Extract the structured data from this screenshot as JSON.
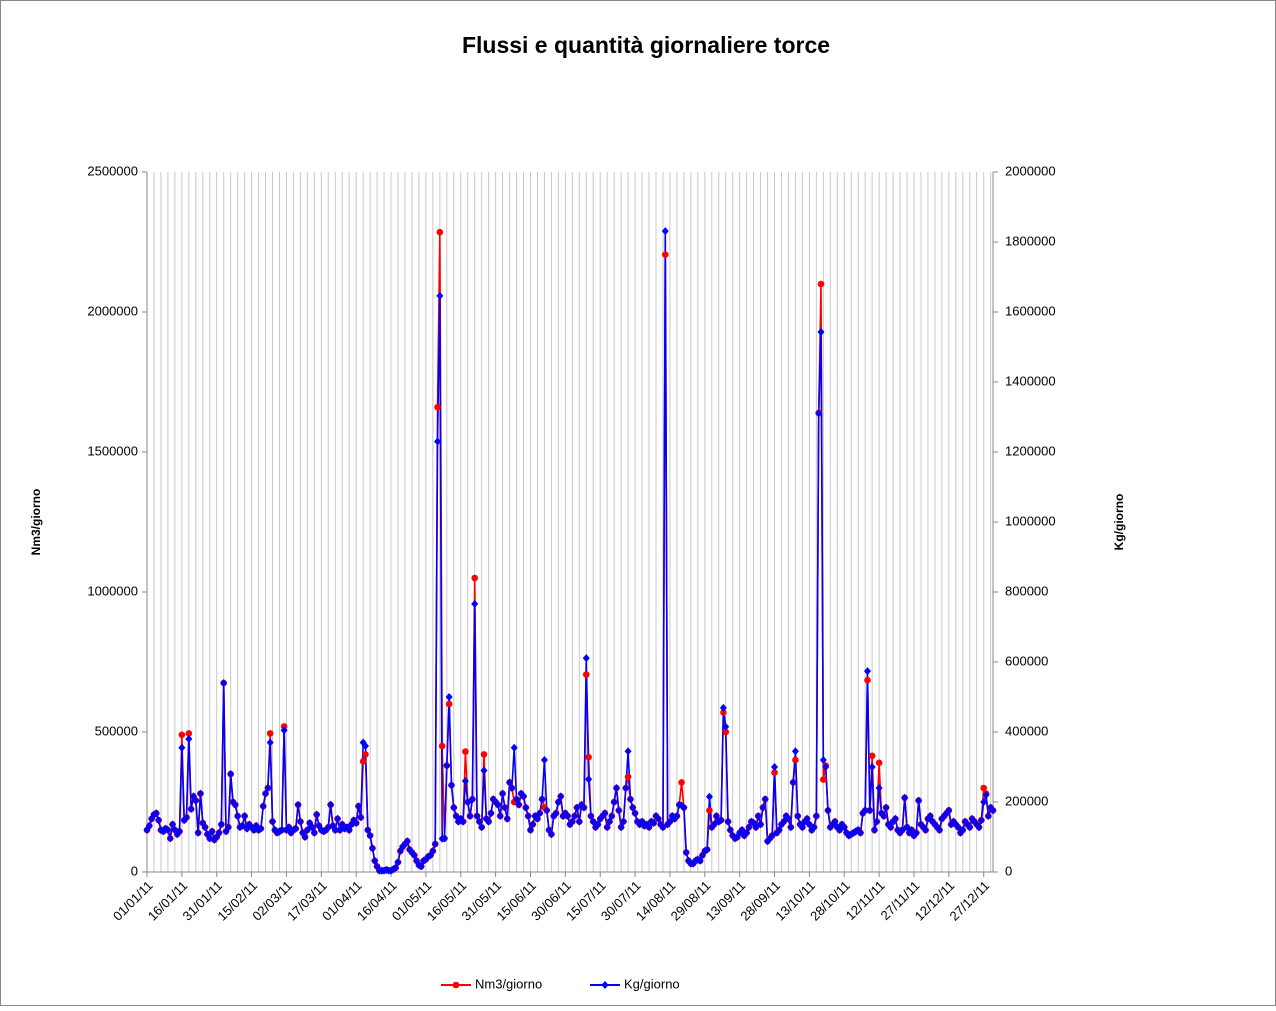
{
  "chart_data": {
    "type": "line",
    "title": "Flussi e quantità giornaliere torce",
    "y_label": "Nm3/giorno",
    "y2_label": "Kg/giorno",
    "categories": [
      "01/01/11",
      null,
      null,
      null,
      null,
      null,
      null,
      null,
      null,
      null,
      null,
      null,
      null,
      null,
      null,
      "16/01/11",
      null,
      null,
      null,
      null,
      null,
      null,
      null,
      null,
      null,
      null,
      null,
      null,
      null,
      null,
      "31/01/11",
      null,
      null,
      null,
      null,
      null,
      null,
      null,
      null,
      null,
      null,
      null,
      null,
      null,
      null,
      "15/02/11",
      null,
      null,
      null,
      null,
      null,
      null,
      null,
      null,
      null,
      null,
      null,
      null,
      null,
      null,
      "02/03/11",
      null,
      null,
      null,
      null,
      null,
      null,
      null,
      null,
      null,
      null,
      null,
      null,
      null,
      null,
      "17/03/11",
      null,
      null,
      null,
      null,
      null,
      null,
      null,
      null,
      null,
      null,
      null,
      null,
      null,
      null,
      "01/04/11",
      null,
      null,
      null,
      null,
      null,
      null,
      null,
      null,
      null,
      null,
      null,
      null,
      null,
      null,
      "16/04/11",
      null,
      null,
      null,
      null,
      null,
      null,
      null,
      null,
      null,
      null,
      null,
      null,
      null,
      null,
      "01/05/11",
      null,
      null,
      null,
      null,
      null,
      null,
      null,
      null,
      null,
      null,
      null,
      null,
      null,
      null,
      "16/05/11",
      null,
      null,
      null,
      null,
      null,
      null,
      null,
      null,
      null,
      null,
      null,
      null,
      null,
      null,
      "31/05/11",
      null,
      null,
      null,
      null,
      null,
      null,
      null,
      null,
      null,
      null,
      null,
      null,
      null,
      null,
      "15/06/11",
      null,
      null,
      null,
      null,
      null,
      null,
      null,
      null,
      null,
      null,
      null,
      null,
      null,
      null,
      "30/06/11",
      null,
      null,
      null,
      null,
      null,
      null,
      null,
      null,
      null,
      null,
      null,
      null,
      null,
      null,
      "15/07/11",
      null,
      null,
      null,
      null,
      null,
      null,
      null,
      null,
      null,
      null,
      null,
      null,
      null,
      null,
      "30/07/11",
      null,
      null,
      null,
      null,
      null,
      null,
      null,
      null,
      null,
      null,
      null,
      null,
      null,
      null,
      "14/08/11",
      null,
      null,
      null,
      null,
      null,
      null,
      null,
      null,
      null,
      null,
      null,
      null,
      null,
      null,
      "29/08/11",
      null,
      null,
      null,
      null,
      null,
      null,
      null,
      null,
      null,
      null,
      null,
      null,
      null,
      null,
      "13/09/11",
      null,
      null,
      null,
      null,
      null,
      null,
      null,
      null,
      null,
      null,
      null,
      null,
      null,
      null,
      "28/09/11",
      null,
      null,
      null,
      null,
      null,
      null,
      null,
      null,
      null,
      null,
      null,
      null,
      null,
      null,
      "13/10/11",
      null,
      null,
      null,
      null,
      null,
      null,
      null,
      null,
      null,
      null,
      null,
      null,
      null,
      null,
      "28/10/11",
      null,
      null,
      null,
      null,
      null,
      null,
      null,
      null,
      null,
      null,
      null,
      null,
      null,
      null,
      "12/11/11",
      null,
      null,
      null,
      null,
      null,
      null,
      null,
      null,
      null,
      null,
      null,
      null,
      null,
      null,
      "27/11/11",
      null,
      null,
      null,
      null,
      null,
      null,
      null,
      null,
      null,
      null,
      null,
      null,
      null,
      null,
      "12/12/11",
      null,
      null,
      null,
      null,
      null,
      null,
      null,
      null,
      null,
      null,
      null,
      null,
      null,
      null,
      "27/12/11",
      null,
      null,
      null,
      null
    ],
    "series": [
      {
        "name": "Nm3/giorno",
        "color": "#ff0000",
        "marker": "circle",
        "values": [
          150000,
          165000,
          190000,
          205000,
          210000,
          185000,
          150000,
          145000,
          155000,
          150000,
          120000,
          170000,
          150000,
          135000,
          145000,
          490000,
          185000,
          195000,
          495000,
          225000,
          270000,
          255000,
          140000,
          280000,
          175000,
          160000,
          135000,
          120000,
          145000,
          115000,
          125000,
          140000,
          170000,
          675000,
          145000,
          160000,
          350000,
          250000,
          240000,
          200000,
          160000,
          165000,
          200000,
          155000,
          170000,
          160000,
          150000,
          165000,
          150000,
          155000,
          235000,
          280000,
          300000,
          495000,
          180000,
          150000,
          140000,
          145000,
          150000,
          520000,
          150000,
          160000,
          140000,
          150000,
          155000,
          240000,
          180000,
          140000,
          125000,
          150000,
          175000,
          160000,
          140000,
          205000,
          165000,
          150000,
          145000,
          150000,
          160000,
          240000,
          165000,
          150000,
          190000,
          150000,
          170000,
          155000,
          160000,
          150000,
          170000,
          185000,
          175000,
          235000,
          195000,
          395000,
          420000,
          150000,
          130000,
          85000,
          40000,
          20000,
          5000,
          5000,
          5000,
          8000,
          5000,
          5000,
          10000,
          15000,
          35000,
          75000,
          90000,
          100000,
          110000,
          80000,
          70000,
          60000,
          40000,
          25000,
          20000,
          40000,
          45000,
          55000,
          60000,
          75000,
          100000,
          1660000,
          2285000,
          450000,
          120000,
          380000,
          600000,
          310000,
          230000,
          200000,
          180000,
          190000,
          180000,
          430000,
          250000,
          200000,
          260000,
          1050000,
          200000,
          180000,
          160000,
          420000,
          190000,
          180000,
          210000,
          260000,
          250000,
          240000,
          200000,
          280000,
          230000,
          190000,
          320000,
          300000,
          250000,
          260000,
          240000,
          280000,
          270000,
          230000,
          200000,
          150000,
          170000,
          200000,
          190000,
          210000,
          260000,
          230000,
          220000,
          150000,
          135000,
          200000,
          210000,
          250000,
          270000,
          200000,
          210000,
          200000,
          170000,
          180000,
          200000,
          230000,
          180000,
          240000,
          230000,
          705000,
          410000,
          200000,
          180000,
          160000,
          170000,
          190000,
          200000,
          210000,
          160000,
          180000,
          200000,
          250000,
          300000,
          220000,
          160000,
          180000,
          300000,
          340000,
          260000,
          230000,
          210000,
          180000,
          170000,
          180000,
          165000,
          170000,
          160000,
          180000,
          175000,
          200000,
          190000,
          170000,
          160000,
          2205000,
          170000,
          180000,
          200000,
          190000,
          200000,
          240000,
          320000,
          230000,
          70000,
          40000,
          30000,
          30000,
          40000,
          45000,
          40000,
          60000,
          75000,
          80000,
          220000,
          160000,
          170000,
          200000,
          180000,
          185000,
          570000,
          500000,
          180000,
          150000,
          130000,
          120000,
          125000,
          140000,
          150000,
          130000,
          140000,
          160000,
          180000,
          175000,
          160000,
          200000,
          170000,
          230000,
          260000,
          110000,
          120000,
          130000,
          355000,
          140000,
          150000,
          170000,
          180000,
          200000,
          190000,
          160000,
          320000,
          400000,
          200000,
          170000,
          160000,
          180000,
          190000,
          170000,
          150000,
          160000,
          200000,
          1640000,
          2100000,
          330000,
          380000,
          220000,
          160000,
          170000,
          180000,
          160000,
          150000,
          170000,
          160000,
          140000,
          130000,
          135000,
          140000,
          145000,
          150000,
          140000,
          210000,
          220000,
          685000,
          220000,
          415000,
          150000,
          180000,
          390000,
          210000,
          200000,
          230000,
          170000,
          160000,
          180000,
          190000,
          150000,
          140000,
          150000,
          265000,
          160000,
          140000,
          150000,
          130000,
          140000,
          255000,
          170000,
          160000,
          150000,
          190000,
          200000,
          180000,
          170000,
          160000,
          150000,
          190000,
          200000,
          210000,
          220000,
          170000,
          180000,
          170000,
          160000,
          140000,
          150000,
          180000,
          170000,
          160000,
          190000,
          180000,
          170000,
          160000,
          185000,
          300000,
          280000,
          200000,
          230000,
          220000
        ]
      },
      {
        "name": "Kg/giorno",
        "color": "#0000ff",
        "marker": "diamond",
        "axis": "y2",
        "values": [
          120000,
          132000,
          152000,
          164000,
          168000,
          148000,
          120000,
          116000,
          124000,
          120000,
          96000,
          136000,
          120000,
          108000,
          116000,
          355000,
          148000,
          156000,
          380000,
          180000,
          216000,
          204000,
          112000,
          224000,
          140000,
          128000,
          108000,
          96000,
          116000,
          92000,
          100000,
          112000,
          136000,
          540000,
          116000,
          128000,
          280000,
          200000,
          192000,
          160000,
          128000,
          132000,
          160000,
          124000,
          136000,
          128000,
          120000,
          132000,
          120000,
          124000,
          188000,
          224000,
          240000,
          370000,
          144000,
          120000,
          112000,
          116000,
          120000,
          405000,
          120000,
          128000,
          112000,
          120000,
          124000,
          192000,
          144000,
          112000,
          100000,
          120000,
          140000,
          128000,
          112000,
          164000,
          132000,
          120000,
          116000,
          120000,
          128000,
          192000,
          132000,
          120000,
          152000,
          120000,
          136000,
          124000,
          128000,
          120000,
          136000,
          148000,
          140000,
          188000,
          156000,
          370000,
          360000,
          120000,
          104000,
          68000,
          32000,
          16000,
          4000,
          4000,
          4000,
          6000,
          4000,
          4000,
          8000,
          12000,
          28000,
          60000,
          72000,
          80000,
          88000,
          64000,
          56000,
          48000,
          32000,
          20000,
          16000,
          32000,
          36000,
          44000,
          48000,
          60000,
          80000,
          1230000,
          1646000,
          95000,
          96000,
          304000,
          500000,
          248000,
          184000,
          160000,
          144000,
          152000,
          144000,
          260000,
          200000,
          160000,
          208000,
          766000,
          160000,
          144000,
          128000,
          290000,
          152000,
          144000,
          168000,
          208000,
          200000,
          192000,
          160000,
          224000,
          184000,
          152000,
          256000,
          240000,
          355000,
          208000,
          192000,
          224000,
          216000,
          184000,
          160000,
          120000,
          136000,
          160000,
          152000,
          168000,
          208000,
          320000,
          176000,
          120000,
          108000,
          160000,
          168000,
          200000,
          216000,
          160000,
          168000,
          160000,
          136000,
          144000,
          160000,
          184000,
          144000,
          192000,
          184000,
          611000,
          265000,
          160000,
          144000,
          128000,
          136000,
          152000,
          160000,
          168000,
          128000,
          144000,
          160000,
          200000,
          240000,
          176000,
          128000,
          144000,
          240000,
          345000,
          208000,
          184000,
          168000,
          144000,
          136000,
          144000,
          132000,
          136000,
          128000,
          144000,
          140000,
          160000,
          152000,
          136000,
          128000,
          1831000,
          136000,
          144000,
          160000,
          152000,
          160000,
          192000,
          190000,
          184000,
          56000,
          32000,
          24000,
          24000,
          32000,
          36000,
          32000,
          48000,
          60000,
          64000,
          215000,
          128000,
          136000,
          160000,
          144000,
          148000,
          469000,
          415000,
          144000,
          120000,
          104000,
          96000,
          100000,
          112000,
          120000,
          104000,
          112000,
          128000,
          144000,
          140000,
          128000,
          160000,
          136000,
          184000,
          208000,
          88000,
          96000,
          104000,
          300000,
          112000,
          120000,
          136000,
          144000,
          160000,
          152000,
          128000,
          256000,
          345000,
          160000,
          136000,
          128000,
          144000,
          152000,
          136000,
          120000,
          128000,
          160000,
          1310000,
          1543000,
          320000,
          300000,
          176000,
          128000,
          136000,
          144000,
          128000,
          120000,
          136000,
          128000,
          112000,
          104000,
          108000,
          112000,
          116000,
          120000,
          112000,
          168000,
          176000,
          574000,
          176000,
          300000,
          120000,
          144000,
          240000,
          168000,
          160000,
          184000,
          136000,
          128000,
          144000,
          152000,
          120000,
          112000,
          120000,
          212000,
          128000,
          112000,
          120000,
          104000,
          112000,
          204000,
          136000,
          128000,
          120000,
          152000,
          160000,
          144000,
          136000,
          128000,
          120000,
          152000,
          160000,
          168000,
          176000,
          136000,
          144000,
          136000,
          128000,
          112000,
          120000,
          144000,
          136000,
          128000,
          152000,
          144000,
          136000,
          128000,
          148000,
          200000,
          220000,
          160000,
          184000,
          176000
        ]
      }
    ],
    "ylim": [
      0,
      2500000
    ],
    "yticks": [
      0,
      500000,
      1000000,
      1500000,
      2000000,
      2500000
    ],
    "y2lim": [
      0,
      2000000
    ],
    "y2ticks": [
      0,
      200000,
      400000,
      600000,
      800000,
      1000000,
      1200000,
      1400000,
      1600000,
      1800000,
      2000000
    ],
    "grid": "x",
    "legend": "bottom"
  }
}
